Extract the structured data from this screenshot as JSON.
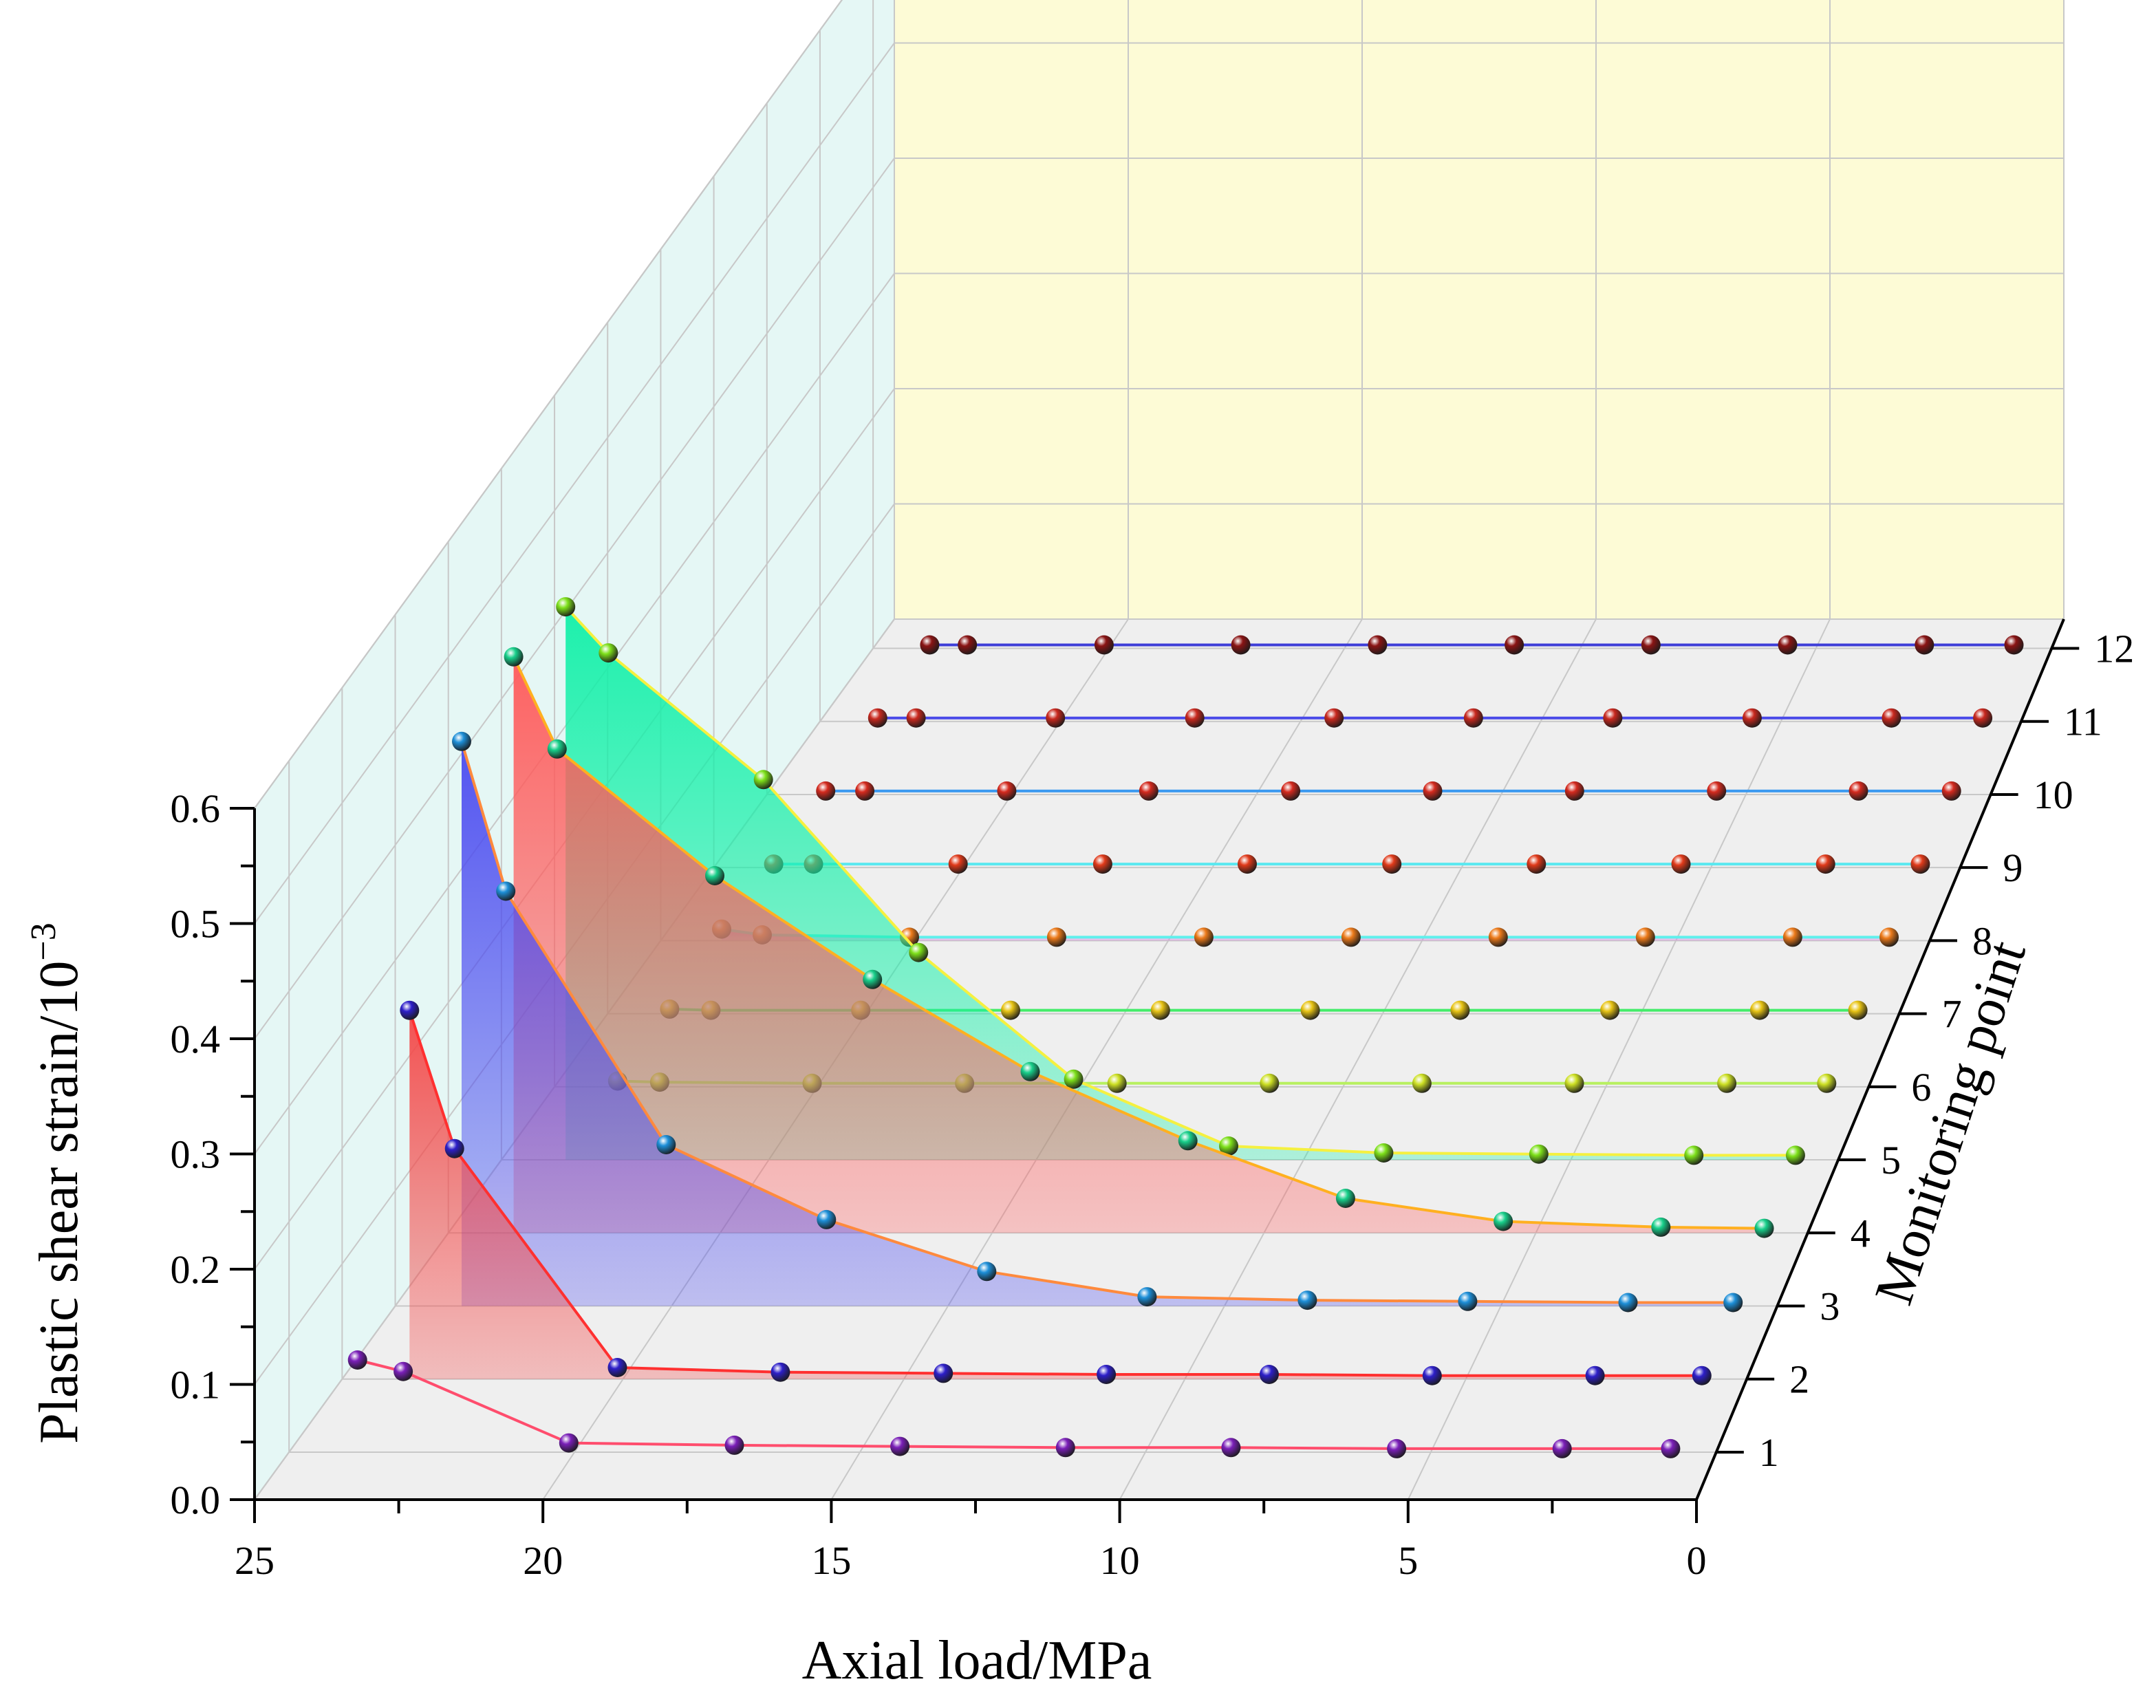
{
  "chart_data": {
    "type": "3d-waterfall",
    "xlabel": "Axial load/MPa",
    "ylabel": "Plastic shear strain/10",
    "ylabel_exponent": "−3",
    "zlabel": "Monitoring point",
    "x_ticks": [
      "25",
      "20",
      "15",
      "10",
      "5",
      "0"
    ],
    "y_ticks": [
      "0.0",
      "0.1",
      "0.2",
      "0.3",
      "0.4",
      "0.5",
      "0.6"
    ],
    "z_ticks": [
      "1",
      "2",
      "3",
      "4",
      "5",
      "6",
      "7",
      "8",
      "9",
      "10",
      "11",
      "12"
    ],
    "xlim": [
      25,
      0
    ],
    "ylim": [
      0,
      0.6
    ],
    "grid": true,
    "x": [
      23.8,
      23.0,
      20.1,
      17.2,
      14.3,
      11.4,
      8.5,
      5.6,
      2.7,
      0.8
    ],
    "series": [
      {
        "point": 1,
        "values": [
          0.08,
          0.07,
          0.008,
          0.006,
          0.005,
          0.004,
          0.004,
          0.003,
          0.003,
          0.003
        ],
        "line_color": "#ff4d6d",
        "marker_color": "#7a1fb8"
      },
      {
        "point": 2,
        "values": [
          0.32,
          0.2,
          0.01,
          0.006,
          0.005,
          0.004,
          0.004,
          0.003,
          0.003,
          0.003
        ],
        "line_color": "#ff3030",
        "marker_color": "#2d1fc9",
        "fill_color": "#f44848"
      },
      {
        "point": 3,
        "values": [
          0.49,
          0.36,
          0.14,
          0.075,
          0.03,
          0.008,
          0.005,
          0.004,
          0.003,
          0.003
        ],
        "line_color": "#ff8a3d",
        "marker_color": "#1d8fd8",
        "fill_color": "#4b4bf0"
      },
      {
        "point": 4,
        "values": [
          0.5,
          0.42,
          0.31,
          0.22,
          0.14,
          0.08,
          0.03,
          0.01,
          0.005,
          0.004
        ],
        "line_color": "#ffb020",
        "marker_color": "#18cf8a",
        "fill_color": "#ff5a5a"
      },
      {
        "point": 5,
        "values": [
          0.48,
          0.44,
          0.33,
          0.18,
          0.07,
          0.012,
          0.006,
          0.005,
          0.004,
          0.004
        ],
        "line_color": "#f5f040",
        "marker_color": "#7de01a",
        "fill_color": "#12f0a8"
      },
      {
        "point": 6,
        "values": [
          0.005,
          0.004,
          0.003,
          0.003,
          0.003,
          0.003,
          0.003,
          0.003,
          0.003,
          0.003
        ],
        "line_color": "#b8f060",
        "marker_color": "#cde024"
      },
      {
        "point": 7,
        "values": [
          0.004,
          0.003,
          0.003,
          0.003,
          0.003,
          0.003,
          0.003,
          0.003,
          0.003,
          0.003
        ],
        "line_color": "#44ec6a",
        "marker_color": "#e8c414"
      },
      {
        "point": 8,
        "values": [
          0.01,
          0.005,
          0.003,
          0.003,
          0.003,
          0.003,
          0.003,
          0.003,
          0.003,
          0.003
        ],
        "line_color": "#5ff0ec",
        "marker_color": "#ec7a1a",
        "fill_color": "#e07ae8"
      },
      {
        "point": 9,
        "values": [
          0.003,
          0.003,
          0.003,
          0.003,
          0.003,
          0.003,
          0.003,
          0.003,
          0.003,
          0.003
        ],
        "line_color": "#5ae8f0",
        "marker_color": "#e03a1a"
      },
      {
        "point": 10,
        "values": [
          0.003,
          0.003,
          0.003,
          0.003,
          0.003,
          0.003,
          0.003,
          0.003,
          0.003,
          0.003
        ],
        "line_color": "#3c9af0",
        "marker_color": "#d42a1e"
      },
      {
        "point": 11,
        "values": [
          0.003,
          0.003,
          0.003,
          0.003,
          0.003,
          0.003,
          0.003,
          0.003,
          0.003,
          0.003
        ],
        "line_color": "#4a4ae8",
        "marker_color": "#c8281e"
      },
      {
        "point": 12,
        "values": [
          0.003,
          0.003,
          0.003,
          0.003,
          0.003,
          0.003,
          0.003,
          0.003,
          0.003,
          0.003
        ],
        "line_color": "#3e3ed8",
        "marker_color": "#8a1414"
      }
    ],
    "colors": {
      "back_wall": "#fdfbd6",
      "side_wall": "#e5f7f5",
      "floor": "#efefef",
      "grid": "#c8c8c8",
      "axis": "#000000"
    }
  }
}
